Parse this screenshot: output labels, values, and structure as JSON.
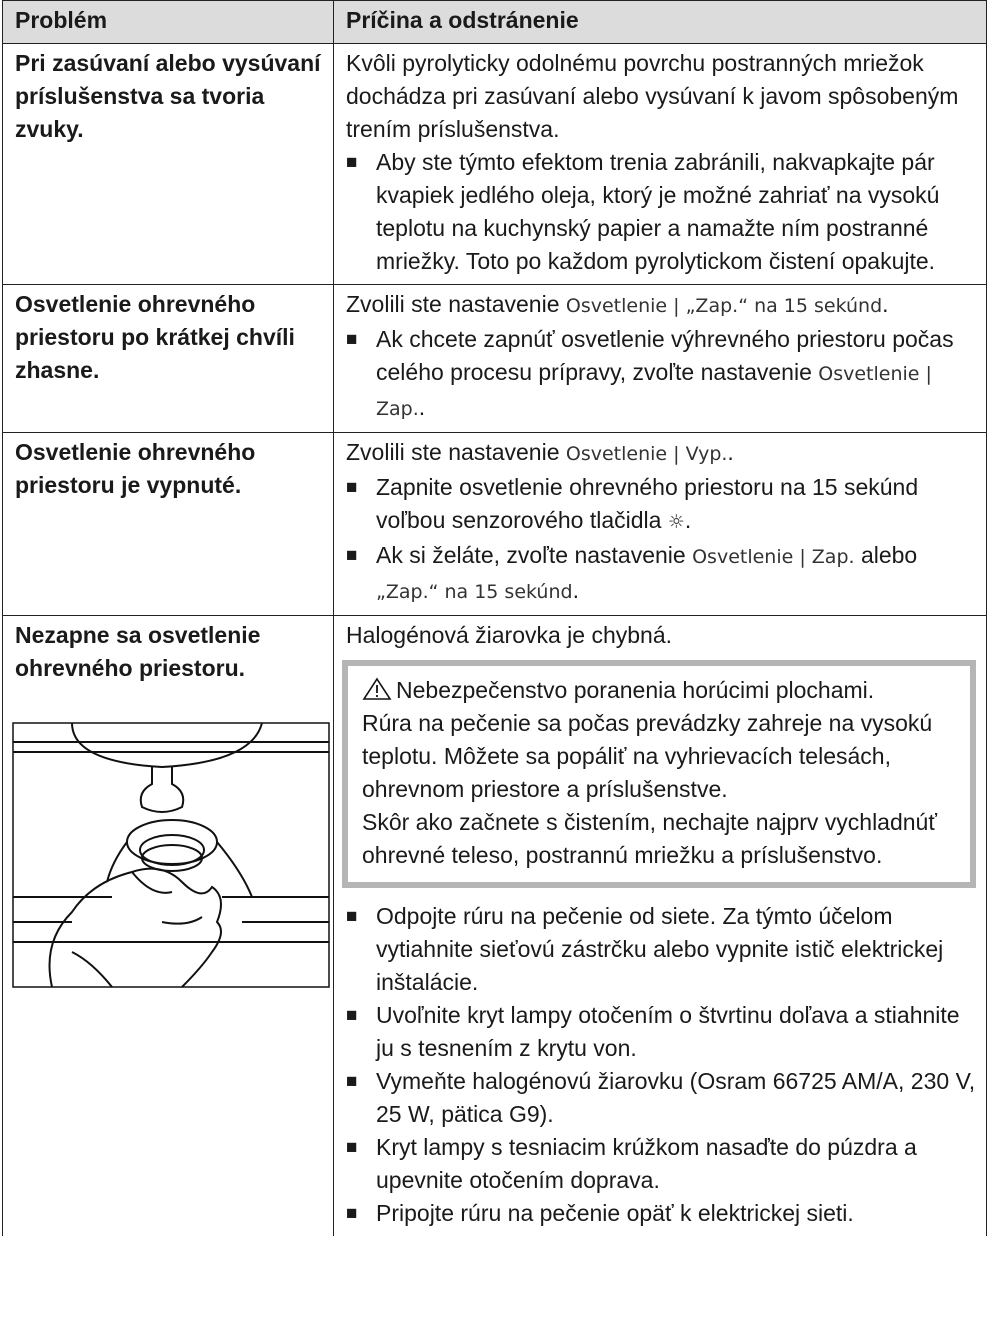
{
  "table": {
    "header": [
      "Problém",
      "Príčina a odstránenie"
    ],
    "rows": [
      {
        "problem": "Pri zasúvaní alebo vysúvaní príslušenstva sa tvoria zvuky.",
        "cause": [
          {
            "text": "Kvôli pyrolyticky odolnému povrchu postranných mriežok dochádza pri zasúvaní alebo vysúvaní k javom spôsobeným trením príslušenstva."
          }
        ],
        "steps": [
          [
            {
              "text": "Aby ste týmto efektom trenia zabránili, nakvapkajte pár kvapiek jedlého oleja, ktorý je možné zahriať na vysokú teplotu na kuchynský papier a namažte ním postranné mriežky. Toto po každom pyrolytickom čistení opakujte."
            }
          ]
        ]
      },
      {
        "problem": "Osvetlenie ohrevného priestoru po krátkej chvíli zhasne.",
        "cause": [
          {
            "text": "Zvolili ste nastavenie "
          },
          {
            "ui": "Osvetlenie | „Zap.“ na 15 sekúnd"
          },
          {
            "text": "."
          }
        ],
        "steps": [
          [
            {
              "text": "Ak chcete zapnúť osvetlenie výhrevného priestoru počas celého procesu prípravy, zvoľte nastavenie "
            },
            {
              "ui": "Osvetlenie | Zap."
            },
            {
              "text": "."
            }
          ]
        ]
      },
      {
        "problem": "Osvetlenie ohrevného priestoru je vypnuté.",
        "cause": [
          {
            "text": "Zvolili ste nastavenie "
          },
          {
            "ui": "Osvetlenie | Vyp."
          },
          {
            "text": "."
          }
        ],
        "steps": [
          [
            {
              "text": "Zapnite osvetlenie ohrevného priestoru na 15 sekúnd voľbou senzorového tlačidla "
            },
            {
              "ui": "☼"
            },
            {
              "text": "."
            }
          ],
          [
            {
              "text": "Ak si želáte, zvoľte nastavenie "
            },
            {
              "ui": "Osvetlenie | Zap."
            },
            {
              "text": " alebo "
            },
            {
              "ui": "„Zap.“ na 15 sekúnd"
            },
            {
              "text": "."
            }
          ]
        ]
      },
      {
        "problem": "Nezapne sa osvetlenie ohrevného priestoru.",
        "cause": [
          {
            "text": "Halogénová žiarovka je chybná."
          }
        ],
        "warning": {
          "title": "Nebezpečenstvo poranenia horúcimi plochami.",
          "paragraphs": [
            "Rúra na pečenie sa počas prevádzky zahreje na vysokú teplotu. Môžete sa popáliť na vyhrievacích telesách, ohrevnom priestore a príslušenstve.",
            "Skôr ako začnete s čistením, nechajte najprv vychladnúť ohrevné teleso, postrannú mriežku a príslušenstvo."
          ]
        },
        "steps": [
          [
            {
              "text": "Odpojte rúru na pečenie od siete. Za týmto účelom vytiahnite sieťovú zástrčku alebo vypnite istič elektrickej inštalácie."
            }
          ],
          [
            {
              "text": "Uvoľnite kryt lampy otočením o štvrtinu doľava a stiahnite ju s tesnením z krytu von."
            }
          ],
          [
            {
              "text": "Vymeňte halogénovú žiarovku (Osram 66725 AM/A, 230 V, 25 W, pätica G9)."
            }
          ],
          [
            {
              "text": "Kryt lampy s tesniacim krúžkom nasaďte do púzdra a upevnite otočením doprava."
            }
          ],
          [
            {
              "text": "Pripojte rúru na pečenie opäť k elektrickej sieti."
            }
          ]
        ]
      }
    ]
  }
}
